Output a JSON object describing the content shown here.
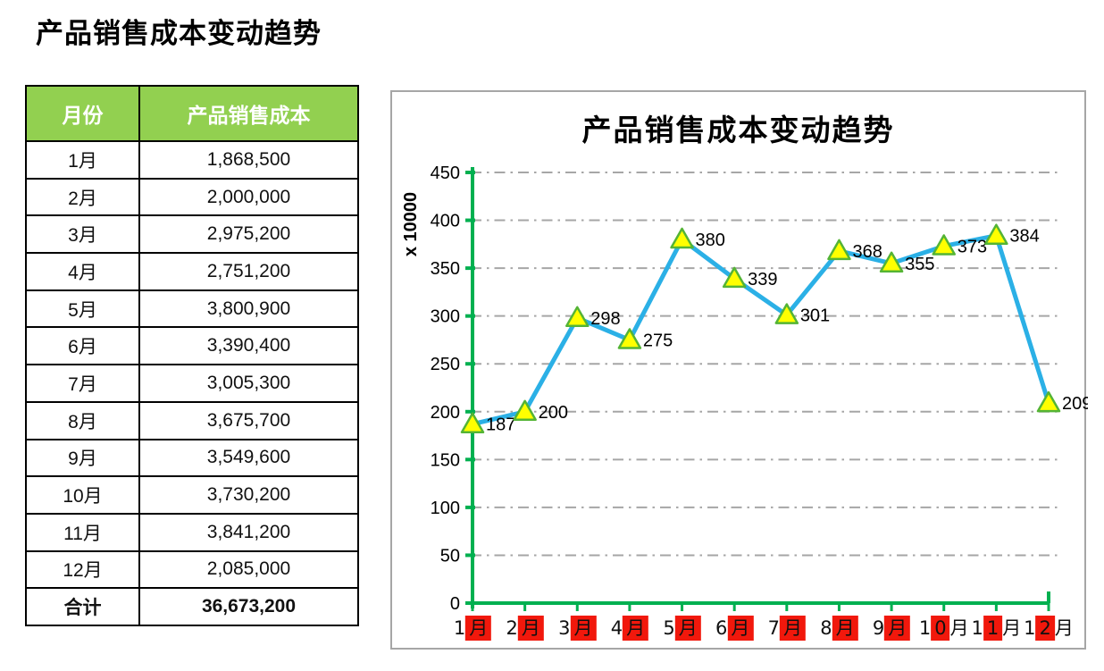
{
  "page": {
    "title": "产品销售成本变动趋势"
  },
  "table": {
    "headers": [
      "月份",
      "产品销售成本"
    ],
    "rows": [
      [
        "1月",
        "1,868,500"
      ],
      [
        "2月",
        "2,000,000"
      ],
      [
        "3月",
        "2,975,200"
      ],
      [
        "4月",
        "2,751,200"
      ],
      [
        "5月",
        "3,800,900"
      ],
      [
        "6月",
        "3,390,400"
      ],
      [
        "7月",
        "3,005,300"
      ],
      [
        "8月",
        "3,675,700"
      ],
      [
        "9月",
        "3,549,600"
      ],
      [
        "10月",
        "3,730,200"
      ],
      [
        "11月",
        "3,841,200"
      ],
      [
        "12月",
        "2,085,000"
      ]
    ],
    "total": [
      "合计",
      "36,673,200"
    ],
    "header_bg": "#92D050"
  },
  "chart_data": {
    "type": "line",
    "title": "产品销售成本变动趋势",
    "categories": [
      "1月",
      "2月",
      "3月",
      "4月",
      "5月",
      "6月",
      "7月",
      "8月",
      "9月",
      "10月",
      "11月",
      "12月"
    ],
    "values": [
      187,
      200,
      298,
      275,
      380,
      339,
      301,
      368,
      355,
      373,
      384,
      209
    ],
    "xlabel": "",
    "ylabel": "x 10000",
    "ylim": [
      0,
      450
    ],
    "ytick_step": 50,
    "grid": "horizontal dash-dot",
    "legend": "none",
    "marker": "triangle",
    "data_labels": true,
    "colors": {
      "line": "#2BB0E6",
      "marker_fill": "#FFFF00",
      "marker_border": "#54B435",
      "axis": "#00B050",
      "gridline": "#A6A6A6",
      "xlabel_highlight": "#F1180C",
      "table_header_bg": "#92D050"
    }
  }
}
